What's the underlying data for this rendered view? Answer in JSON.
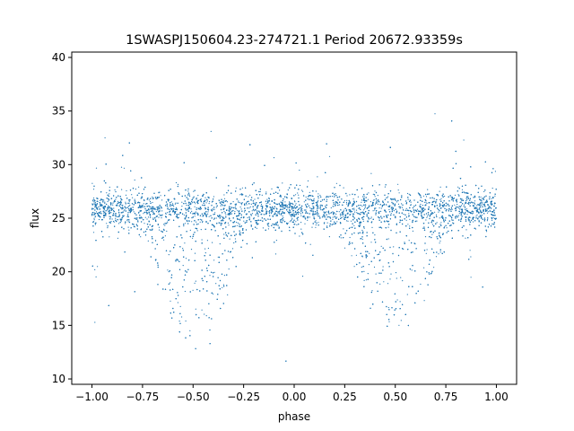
{
  "chart_data": {
    "type": "scatter",
    "title": "1SWASPJ150604.23-274721.1 Period 20672.93359s",
    "xlabel": "phase",
    "ylabel": "flux",
    "xlim": [
      -1.1,
      1.1
    ],
    "ylim": [
      9.5,
      40.5
    ],
    "x_ticks": [
      -1.0,
      -0.75,
      -0.5,
      -0.25,
      0.0,
      0.25,
      0.5,
      0.75,
      1.0
    ],
    "x_tick_labels": [
      "−1.00",
      "−0.75",
      "−0.50",
      "−0.25",
      "0.00",
      "0.25",
      "0.50",
      "0.75",
      "1.00"
    ],
    "y_ticks": [
      10,
      15,
      20,
      25,
      30,
      35,
      40
    ],
    "y_tick_labels": [
      "10",
      "15",
      "20",
      "25",
      "30",
      "35",
      "40"
    ],
    "grid": false,
    "legend": "none",
    "point_color": "#1f77b4",
    "series": [
      {
        "phase_range": [
          -1.0,
          1.0
        ],
        "baseline_flux": 25.8,
        "baseline_scatter": 0.9,
        "dip_centers": [
          -0.5,
          0.5
        ],
        "dip_min_flux": 15,
        "dip_half_width": 0.27,
        "outlier_flux_range": [
          11,
          36
        ]
      }
    ]
  }
}
